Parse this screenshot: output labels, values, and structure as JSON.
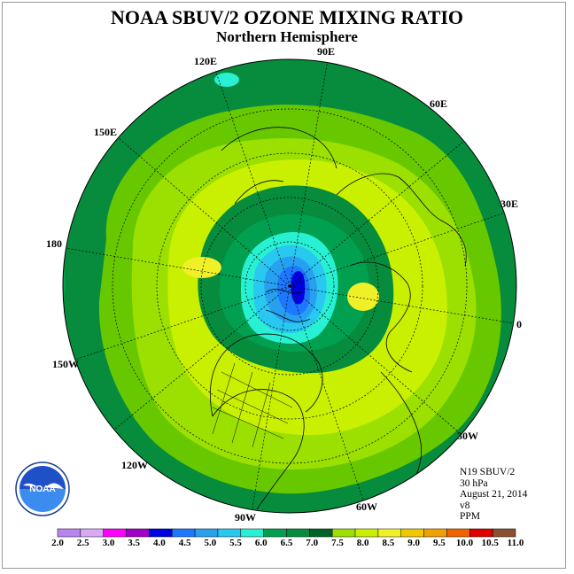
{
  "title": "NOAA SBUV/2 OZONE MIXING RATIO",
  "subtitle": "Northern Hemisphere",
  "longitude_labels": [
    "120E",
    "90E",
    "60E",
    "150E",
    "30E",
    "180",
    "0",
    "150W",
    "30W",
    "120W",
    "90W",
    "60W"
  ],
  "info": {
    "satellite": "N19 SBUV/2",
    "level": "30 hPa",
    "date": "August 21, 2014",
    "version": "v8",
    "units": "PPM"
  },
  "logo_text": "NOAA",
  "logo_ring_text": "NATIONAL OCEANIC AND ATMOSPHERIC ADMINISTRATION · U.S. DEPARTMENT OF COMMERCE",
  "colorbar": {
    "labels": [
      "2.0",
      "2.5",
      "3.0",
      "3.5",
      "4.0",
      "4.5",
      "5.0",
      "5.5",
      "6.0",
      "6.5",
      "7.0",
      "7.5",
      "8.0",
      "8.5",
      "9.0",
      "9.5",
      "10.0",
      "10.5",
      "11.0"
    ],
    "colors": [
      "#b784f0",
      "#dba8f5",
      "#ff00ff",
      "#a000c8",
      "#0000e0",
      "#1e78ff",
      "#28a0f0",
      "#28c8f0",
      "#28f0d2",
      "#00a050",
      "#068c3c",
      "#006428",
      "#9be000",
      "#c8f000",
      "#f0f028",
      "#f0c800",
      "#f0a000",
      "#f06400",
      "#e00000",
      "#8c5030"
    ]
  }
}
